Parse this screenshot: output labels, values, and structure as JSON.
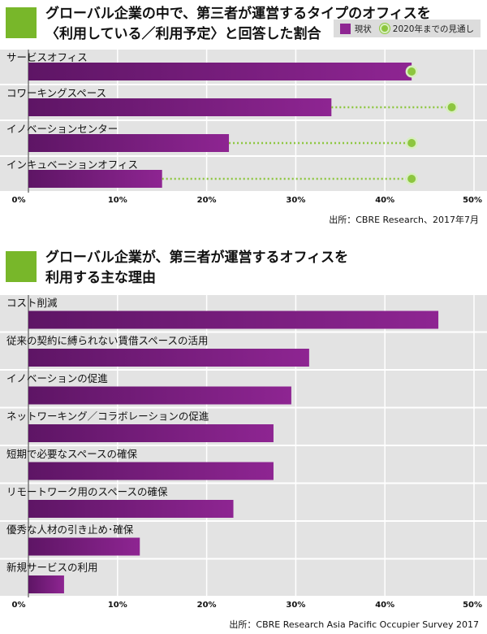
{
  "chart_data": [
    {
      "type": "bar",
      "title": "グローバル企業の中で、第三者が運営するタイプのオフィスを〈利用している／利用予定〉と回答した割合",
      "title_lines": [
        "グローバル企業の中で、第三者が運営するタイプのオフィスを",
        "〈利用している／利用予定〉と回答した割合"
      ],
      "orientation": "horizontal",
      "categories": [
        "サービスオフィス",
        "コワーキングスペース",
        "イノベーションセンター",
        "インキュベーションオフィス"
      ],
      "series": [
        {
          "name": "現状",
          "values": [
            43,
            34,
            22.5,
            15
          ],
          "color": "#8e2592"
        },
        {
          "name": "2020年までの見通し",
          "values": [
            43,
            47.5,
            43,
            43
          ],
          "color": "#8dc63f"
        }
      ],
      "xlim": [
        0,
        50
      ],
      "x_ticks": [
        "0%",
        "10%",
        "20%",
        "30%",
        "40%",
        "50%"
      ],
      "grid": true,
      "legend_position": "top-right",
      "source": "出所：CBRE Research、2017年7月"
    },
    {
      "type": "bar",
      "title": "グローバル企業が、第三者が運営するオフィスを利用する主な理由",
      "title_lines": [
        "グローバル企業が、第三者が運営するオフィスを",
        "利用する主な理由"
      ],
      "orientation": "horizontal",
      "categories": [
        "コスト削減",
        "従来の契約に縛られない賃借スペースの活用",
        "イノベーションの促進",
        "ネットワーキング／コラボレーションの促進",
        "短期で必要なスペースの確保",
        "リモートワーク用のスペースの確保",
        "優秀な人材の引き止め･確保",
        "新規サービスの利用"
      ],
      "values": [
        46,
        31.5,
        29.5,
        27.5,
        27.5,
        23,
        12.5,
        4
      ],
      "xlim": [
        0,
        50
      ],
      "x_ticks": [
        "0%",
        "10%",
        "20%",
        "30%",
        "40%",
        "50%"
      ],
      "grid": true,
      "source": "出所：CBRE Research Asia Pacific Occupier Survey 2017"
    }
  ]
}
